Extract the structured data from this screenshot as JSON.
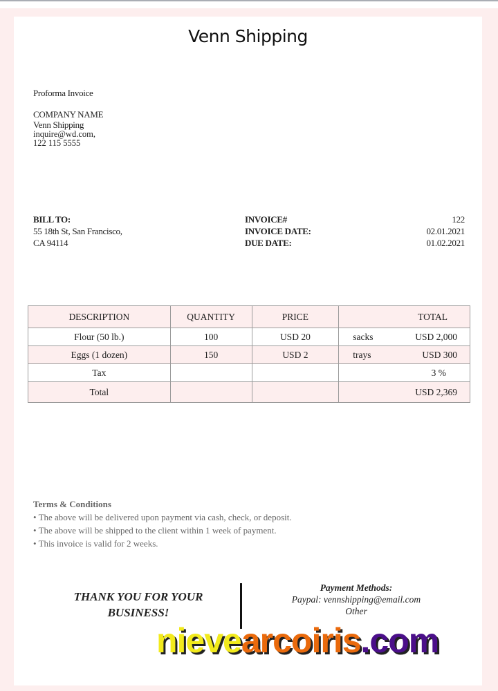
{
  "header": {
    "title": "Venn Shipping"
  },
  "document_type": "Proforma Invoice",
  "company": {
    "label": "COMPANY NAME",
    "name": "Venn Shipping",
    "email": "inquire@wd.com,",
    "phone": "122 115 5555"
  },
  "bill_to": {
    "label": "BILL TO:",
    "line1": "55 18th St, San Francisco,",
    "line2": "CA 94114"
  },
  "invoice": {
    "number_label": "INVOICE#",
    "number": "122",
    "date_label": "INVOICE DATE:",
    "date": "02.01.2021",
    "due_label": "DUE DATE:",
    "due": "01.02.2021"
  },
  "table": {
    "headers": [
      "DESCRIPTION",
      "QUANTITY",
      "PRICE",
      "TOTAL"
    ],
    "rows": [
      {
        "description": "Flour (50 lb.)",
        "quantity": "100",
        "price": "USD 20",
        "unit": "sacks",
        "total": "USD 2,000"
      },
      {
        "description": "Eggs (1 dozen)",
        "quantity": "150",
        "price": "USD 2",
        "unit": "trays",
        "total": "USD 300"
      },
      {
        "description": "Tax",
        "quantity": "",
        "price": "",
        "unit": "",
        "total": "3 %"
      },
      {
        "description": "Total",
        "quantity": "",
        "price": "",
        "unit": "",
        "total": "USD 2,369"
      }
    ]
  },
  "terms": {
    "heading": "Terms & Conditions",
    "items": [
      "• The above will be delivered upon payment via cash, check, or deposit.",
      "• The above will be shipped to the client within 1 week of payment.",
      "• This invoice is valid for 2 weeks."
    ]
  },
  "footer": {
    "thanks_line1": "THANK YOU FOR YOUR",
    "thanks_line2": "BUSINESS!",
    "payment_heading": "Payment Methods:",
    "payment_paypal": "Paypal:  vennshipping@email.com",
    "payment_other": "Other"
  },
  "watermark": {
    "part1": "nieve",
    "part2": "arcoiris",
    "part3": ".com",
    "colors": [
      "#f2ea1c",
      "#ea6a0c",
      "#4b0f8a"
    ]
  },
  "colors": {
    "background": "#fdeeee",
    "table_shade": "#fdeeee"
  }
}
